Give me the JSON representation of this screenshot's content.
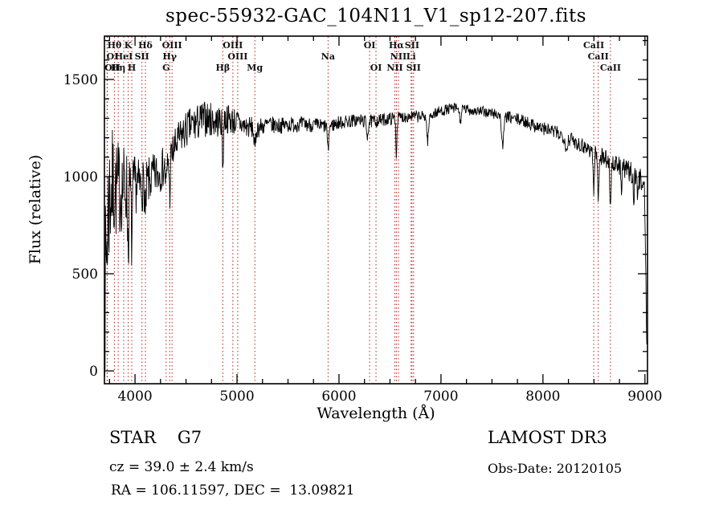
{
  "title": "spec-55932-GAC_104N11_V1_sp12-207.fits",
  "chart_data": {
    "type": "line",
    "title": "spec-55932-GAC_104N11_V1_sp12-207.fits",
    "xlabel": "Wavelength (Å)",
    "ylabel": "Flux (relative)",
    "xlim": [
      3700,
      9025
    ],
    "ylim": [
      -66,
      1723
    ],
    "x_ticks": [
      4000,
      5000,
      6000,
      7000,
      8000,
      9000
    ],
    "x_tick_labels": [
      "4000",
      "5000",
      "6000",
      "7000",
      "8000",
      "9000"
    ],
    "x_minor_step": 250,
    "y_ticks": [
      0,
      500,
      1000,
      1500
    ],
    "y_tick_labels": [
      "0",
      "500",
      "1000",
      "1500"
    ],
    "y_minor_step": 100,
    "grid": false,
    "line_color": "#000000",
    "axis_color": "#000000",
    "marker_line_color": "#b22222",
    "marker_label_color": "#111111",
    "noise_seed": 7,
    "continuum": [
      [
        3700,
        300
      ],
      [
        3715,
        520
      ],
      [
        3730,
        760
      ],
      [
        3745,
        870
      ],
      [
        3760,
        930
      ],
      [
        3780,
        950
      ],
      [
        3810,
        930
      ],
      [
        3840,
        940
      ],
      [
        3870,
        945
      ],
      [
        3900,
        950
      ],
      [
        3930,
        945
      ],
      [
        3960,
        940
      ],
      [
        4000,
        960
      ],
      [
        4040,
        950
      ],
      [
        4080,
        955
      ],
      [
        4120,
        965
      ],
      [
        4160,
        990
      ],
      [
        4200,
        1010
      ],
      [
        4240,
        1025
      ],
      [
        4280,
        1050
      ],
      [
        4320,
        1080
      ],
      [
        4360,
        1110
      ],
      [
        4400,
        1160
      ],
      [
        4440,
        1200
      ],
      [
        4480,
        1225
      ],
      [
        4520,
        1250
      ],
      [
        4560,
        1265
      ],
      [
        4600,
        1270
      ],
      [
        4650,
        1290
      ],
      [
        4700,
        1300
      ],
      [
        4750,
        1290
      ],
      [
        4800,
        1285
      ],
      [
        4850,
        1285
      ],
      [
        4900,
        1300
      ],
      [
        4950,
        1290
      ],
      [
        5000,
        1280
      ],
      [
        5050,
        1265
      ],
      [
        5100,
        1255
      ],
      [
        5200,
        1250
      ],
      [
        5300,
        1268
      ],
      [
        5400,
        1262
      ],
      [
        5500,
        1266
      ],
      [
        5600,
        1270
      ],
      [
        5700,
        1268
      ],
      [
        5800,
        1262
      ],
      [
        5900,
        1258
      ],
      [
        6000,
        1278
      ],
      [
        6100,
        1285
      ],
      [
        6200,
        1290
      ],
      [
        6300,
        1282
      ],
      [
        6400,
        1290
      ],
      [
        6500,
        1298
      ],
      [
        6600,
        1305
      ],
      [
        6700,
        1312
      ],
      [
        6800,
        1308
      ],
      [
        6900,
        1318
      ],
      [
        7000,
        1338
      ],
      [
        7080,
        1348
      ],
      [
        7160,
        1352
      ],
      [
        7240,
        1346
      ],
      [
        7320,
        1340
      ],
      [
        7400,
        1334
      ],
      [
        7480,
        1328
      ],
      [
        7560,
        1320
      ],
      [
        7640,
        1308
      ],
      [
        7720,
        1298
      ],
      [
        7800,
        1288
      ],
      [
        7900,
        1268
      ],
      [
        8000,
        1248
      ],
      [
        8100,
        1232
      ],
      [
        8200,
        1210
      ],
      [
        8300,
        1185
      ],
      [
        8400,
        1158
      ],
      [
        8500,
        1128
      ],
      [
        8600,
        1098
      ],
      [
        8700,
        1062
      ],
      [
        8800,
        1038
      ],
      [
        8900,
        1010
      ],
      [
        8960,
        990
      ],
      [
        8995,
        960
      ],
      [
        9008,
        500
      ],
      [
        9018,
        110
      ]
    ],
    "noise_profile": [
      [
        3700,
        430
      ],
      [
        3740,
        400
      ],
      [
        3780,
        300
      ],
      [
        3820,
        260
      ],
      [
        3860,
        240
      ],
      [
        3900,
        220
      ],
      [
        3950,
        190
      ],
      [
        4000,
        150
      ],
      [
        4100,
        130
      ],
      [
        4200,
        115
      ],
      [
        4300,
        105
      ],
      [
        4450,
        95
      ],
      [
        4600,
        100
      ],
      [
        4750,
        90
      ],
      [
        4900,
        80
      ],
      [
        5000,
        70
      ],
      [
        5100,
        60
      ],
      [
        5250,
        48
      ],
      [
        5400,
        42
      ],
      [
        5600,
        40
      ],
      [
        5800,
        38
      ],
      [
        6000,
        36
      ],
      [
        6300,
        34
      ],
      [
        6600,
        32
      ],
      [
        7000,
        28
      ],
      [
        7400,
        28
      ],
      [
        7800,
        32
      ],
      [
        8100,
        36
      ],
      [
        8400,
        42
      ],
      [
        8700,
        52
      ],
      [
        9000,
        58
      ]
    ],
    "absorption_features": [
      {
        "wavelength": 3933,
        "depth": 300,
        "width": 6
      },
      {
        "wavelength": 3968,
        "depth": 280,
        "width": 6
      },
      {
        "wavelength": 4102,
        "depth": 210,
        "width": 5
      },
      {
        "wavelength": 4305,
        "depth": 120,
        "width": 7
      },
      {
        "wavelength": 4340,
        "depth": 190,
        "width": 5
      },
      {
        "wavelength": 4861,
        "depth": 240,
        "width": 5
      },
      {
        "wavelength": 5175,
        "depth": 110,
        "width": 8
      },
      {
        "wavelength": 5893,
        "depth": 140,
        "width": 6
      },
      {
        "wavelength": 6278,
        "depth": 70,
        "width": 8
      },
      {
        "wavelength": 6563,
        "depth": 190,
        "width": 5
      },
      {
        "wavelength": 6870,
        "depth": 130,
        "width": 9
      },
      {
        "wavelength": 7190,
        "depth": 60,
        "width": 9
      },
      {
        "wavelength": 7605,
        "depth": 150,
        "width": 11
      },
      {
        "wavelength": 8230,
        "depth": 70,
        "width": 9
      },
      {
        "wavelength": 8498,
        "depth": 200,
        "width": 6
      },
      {
        "wavelength": 8542,
        "depth": 240,
        "width": 6
      },
      {
        "wavelength": 8662,
        "depth": 220,
        "width": 6
      },
      {
        "wavelength": 8770,
        "depth": 120,
        "width": 4
      },
      {
        "wavelength": 8890,
        "depth": 170,
        "width": 4
      },
      {
        "wavelength": 8930,
        "depth": 140,
        "width": 4
      }
    ],
    "spectral_lines": [
      {
        "label": "Hθ",
        "wavelength": 3798,
        "row": 0
      },
      {
        "label": "K",
        "wavelength": 3933,
        "row": 0
      },
      {
        "label": "Hδ",
        "wavelength": 4102,
        "row": 0
      },
      {
        "label": "OI",
        "wavelength": 3729,
        "row": 1
      },
      {
        "label": "HeI",
        "wavelength": 3889,
        "row": 1
      },
      {
        "label": "SII",
        "wavelength": 4068,
        "row": 1
      },
      {
        "label": "OII",
        "wavelength": 3726,
        "row": 2
      },
      {
        "label": "Hη",
        "wavelength": 3835,
        "row": 2
      },
      {
        "label": "H",
        "wavelength": 3968,
        "row": 2
      },
      {
        "label": "OIII",
        "wavelength": 4363,
        "row": 0
      },
      {
        "label": "Hγ",
        "wavelength": 4340,
        "row": 1
      },
      {
        "label": "G",
        "wavelength": 4305,
        "row": 2
      },
      {
        "label": "OIII",
        "wavelength": 4959,
        "row": 0
      },
      {
        "label": "OIII",
        "wavelength": 5007,
        "row": 1
      },
      {
        "label": "Hβ",
        "wavelength": 4861,
        "row": 2
      },
      {
        "label": "Mg",
        "wavelength": 5175,
        "row": 2
      },
      {
        "label": "Na",
        "wavelength": 5893,
        "row": 1
      },
      {
        "label": "OI",
        "wavelength": 6300,
        "row": 0
      },
      {
        "label": "Hα",
        "wavelength": 6563,
        "row": 0
      },
      {
        "label": "SII",
        "wavelength": 6716,
        "row": 0
      },
      {
        "label": "NII",
        "wavelength": 6583,
        "row": 1
      },
      {
        "label": "Li",
        "wavelength": 6707,
        "row": 1
      },
      {
        "label": "OI",
        "wavelength": 6363,
        "row": 2
      },
      {
        "label": "NII",
        "wavelength": 6548,
        "row": 2
      },
      {
        "label": "SII",
        "wavelength": 6731,
        "row": 2
      },
      {
        "label": "CaII",
        "wavelength": 8498,
        "row": 0
      },
      {
        "label": "CaII",
        "wavelength": 8542,
        "row": 1
      },
      {
        "label": "CaII",
        "wavelength": 8662,
        "row": 2
      }
    ]
  },
  "footer": {
    "classification": "STAR    G7",
    "survey": "LAMOST DR3",
    "cz": "cz = 39.0 ± 2.4 km/s",
    "obs_date": "Obs-Date: 20120105",
    "radec": "RA = 106.11597, DEC =  13.09821"
  }
}
